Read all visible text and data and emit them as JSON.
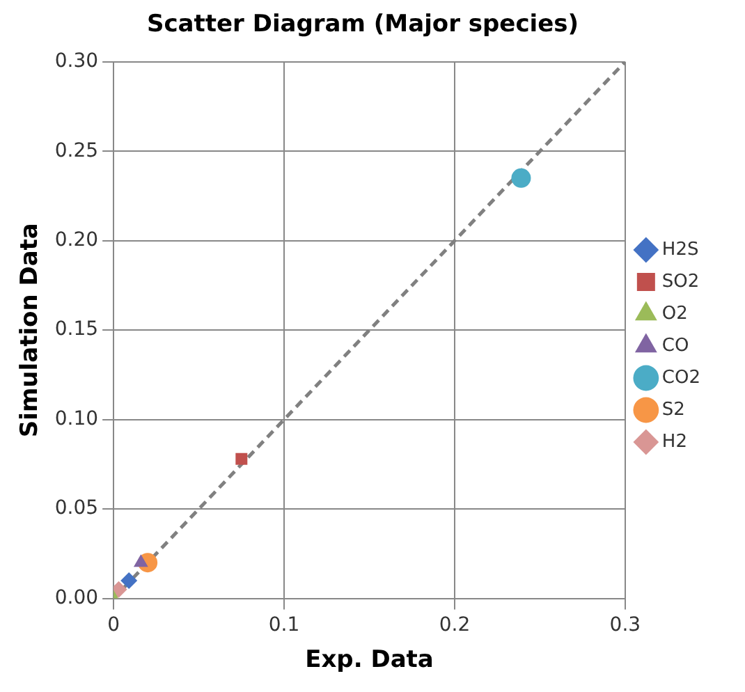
{
  "chart_data": {
    "type": "scatter",
    "title": "Scatter Diagram (Major species)",
    "xlabel": "Exp. Data",
    "ylabel": "Simulation Data",
    "xlim": [
      0,
      0.3
    ],
    "xticks": [
      0,
      0.1,
      0.2,
      0.3
    ],
    "ylim": [
      0,
      0.3
    ],
    "yticks": [
      {
        "value": 0,
        "label": "0.00"
      },
      {
        "value": 0.05,
        "label": "0.05"
      },
      {
        "value": 0.1,
        "label": "0.10"
      },
      {
        "value": 0.15,
        "label": "0.15"
      },
      {
        "value": 0.2,
        "label": "0.20"
      },
      {
        "value": 0.25,
        "label": "0.25"
      },
      {
        "value": 0.3,
        "label": "0.30"
      }
    ],
    "grid": true,
    "legend": "right",
    "series": [
      {
        "name": "H2S",
        "color": "#4472c4",
        "marker": "diamond",
        "x": [
          0.009
        ],
        "values": [
          0.01
        ]
      },
      {
        "name": "SO2",
        "color": "#c0504d",
        "marker": "square",
        "x": [
          0.075
        ],
        "values": [
          0.078
        ]
      },
      {
        "name": "O2",
        "color": "#9bbb59",
        "marker": "triangle",
        "x": [
          0
        ],
        "values": [
          0
        ]
      },
      {
        "name": "CO",
        "color": "#8064a2",
        "marker": "triangle",
        "x": [
          0.016
        ],
        "values": [
          0.02
        ]
      },
      {
        "name": "CO2",
        "color": "#4bacc6",
        "marker": "circle",
        "x": [
          0.239
        ],
        "values": [
          0.235
        ]
      },
      {
        "name": "S2",
        "color": "#f79646",
        "marker": "circle",
        "x": [
          0.02
        ],
        "values": [
          0.02
        ]
      },
      {
        "name": "H2",
        "color": "#d99694",
        "marker": "diamond",
        "x": [
          0.003
        ],
        "values": [
          0.005
        ]
      },
      {
        "type": "line",
        "color": "#808080",
        "line_style": "dashed",
        "marker": "none",
        "x": [
          0,
          0.3
        ],
        "values": [
          0,
          0.3
        ]
      }
    ]
  }
}
